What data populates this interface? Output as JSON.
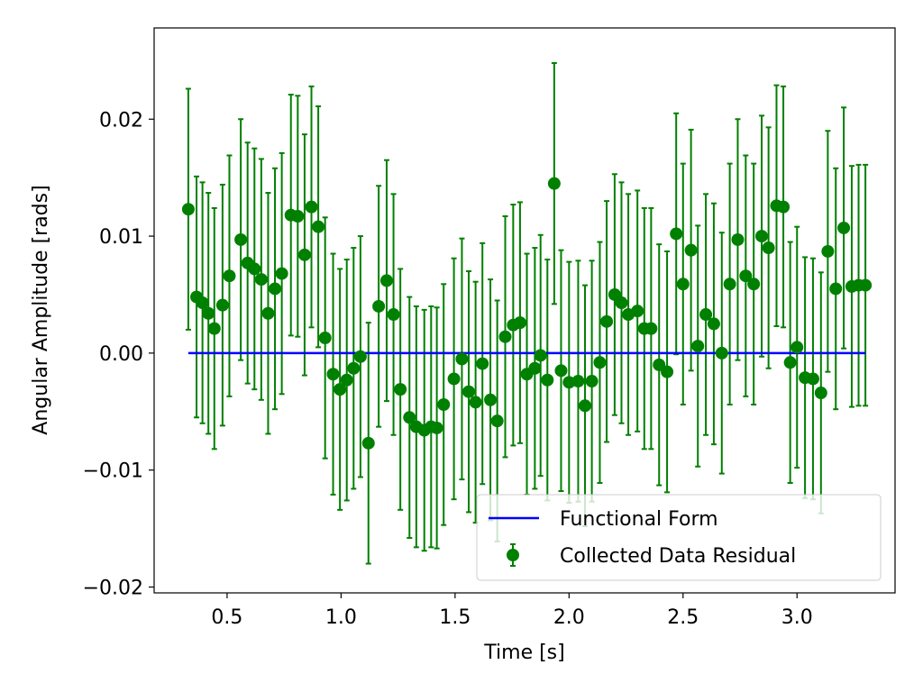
{
  "chart_data": {
    "type": "scatter",
    "title": "",
    "xlabel": "Time [s]",
    "ylabel": "Angular Amplitude [rads]",
    "xlim": [
      0.18,
      3.43
    ],
    "ylim": [
      -0.0205,
      0.0278
    ],
    "xticks": [
      0.5,
      1.0,
      1.5,
      2.0,
      2.5,
      3.0
    ],
    "xtick_labels": [
      "0.5",
      "1.0",
      "1.5",
      "2.0",
      "2.5",
      "3.0"
    ],
    "yticks": [
      -0.02,
      -0.01,
      0.0,
      0.01,
      0.02
    ],
    "ytick_labels": [
      "−0.02",
      "−0.01",
      "0.00",
      "0.01",
      "0.02"
    ],
    "grid": false,
    "legend_position": "lower-right",
    "error_bar": 0.0103,
    "colors": {
      "data": "#008000",
      "fit": "#0000ff"
    },
    "series": [
      {
        "name": "Functional Form",
        "kind": "line",
        "x": [
          0.33,
          3.3
        ],
        "y": [
          0.0,
          0.0
        ]
      },
      {
        "name": "Collected Data Residual",
        "kind": "errorbar",
        "x": [
          0.33,
          0.366,
          0.392,
          0.418,
          0.444,
          0.48,
          0.51,
          0.56,
          0.59,
          0.62,
          0.65,
          0.68,
          0.71,
          0.74,
          0.78,
          0.81,
          0.84,
          0.87,
          0.9,
          0.93,
          0.965,
          0.995,
          1.025,
          1.055,
          1.085,
          1.12,
          1.165,
          1.2,
          1.23,
          1.26,
          1.3,
          1.33,
          1.365,
          1.395,
          1.42,
          1.45,
          1.495,
          1.53,
          1.56,
          1.59,
          1.62,
          1.655,
          1.685,
          1.72,
          1.755,
          1.785,
          1.815,
          1.85,
          1.875,
          1.905,
          1.935,
          1.965,
          2.0,
          2.04,
          2.07,
          2.1,
          2.135,
          2.165,
          2.2,
          2.23,
          2.26,
          2.3,
          2.33,
          2.36,
          2.395,
          2.43,
          2.47,
          2.5,
          2.535,
          2.565,
          2.6,
          2.635,
          2.67,
          2.705,
          2.74,
          2.775,
          2.81,
          2.845,
          2.875,
          2.91,
          2.94,
          2.97,
          3.0,
          3.035,
          3.07,
          3.105,
          3.135,
          3.17,
          3.205,
          3.24,
          3.27,
          3.3
        ],
        "y": [
          0.0123,
          0.0048,
          0.0043,
          0.0034,
          0.0021,
          0.0041,
          0.0066,
          0.0097,
          0.0077,
          0.0072,
          0.0063,
          0.0034,
          0.0055,
          0.0068,
          0.0118,
          0.0117,
          0.0084,
          0.0125,
          0.0108,
          0.0013,
          -0.0018,
          -0.0031,
          -0.0023,
          -0.0013,
          -0.0003,
          -0.0077,
          0.004,
          0.0062,
          0.0033,
          -0.0031,
          -0.0055,
          -0.0063,
          -0.0066,
          -0.0063,
          -0.0064,
          -0.0044,
          -0.0022,
          -0.0005,
          -0.0033,
          -0.0042,
          -0.0009,
          -0.004,
          -0.0058,
          0.0014,
          0.0024,
          0.0026,
          -0.0018,
          -0.0013,
          -0.0002,
          -0.0023,
          0.0145,
          -0.0015,
          -0.0025,
          -0.0024,
          -0.0045,
          -0.0024,
          -0.0008,
          0.0027,
          0.005,
          0.0043,
          0.0033,
          0.0036,
          0.0021,
          0.0021,
          -0.001,
          -0.0016,
          0.0102,
          0.0059,
          0.0088,
          0.0006,
          0.0033,
          0.0025,
          0.0,
          0.0059,
          0.0097,
          0.0066,
          0.0059,
          0.01,
          0.009,
          0.0126,
          0.0125,
          -0.0008,
          0.0005,
          -0.0021,
          -0.0022,
          -0.0034,
          0.0087,
          0.0055,
          0.0107,
          0.0057,
          0.0058,
          0.0058
        ]
      }
    ]
  }
}
